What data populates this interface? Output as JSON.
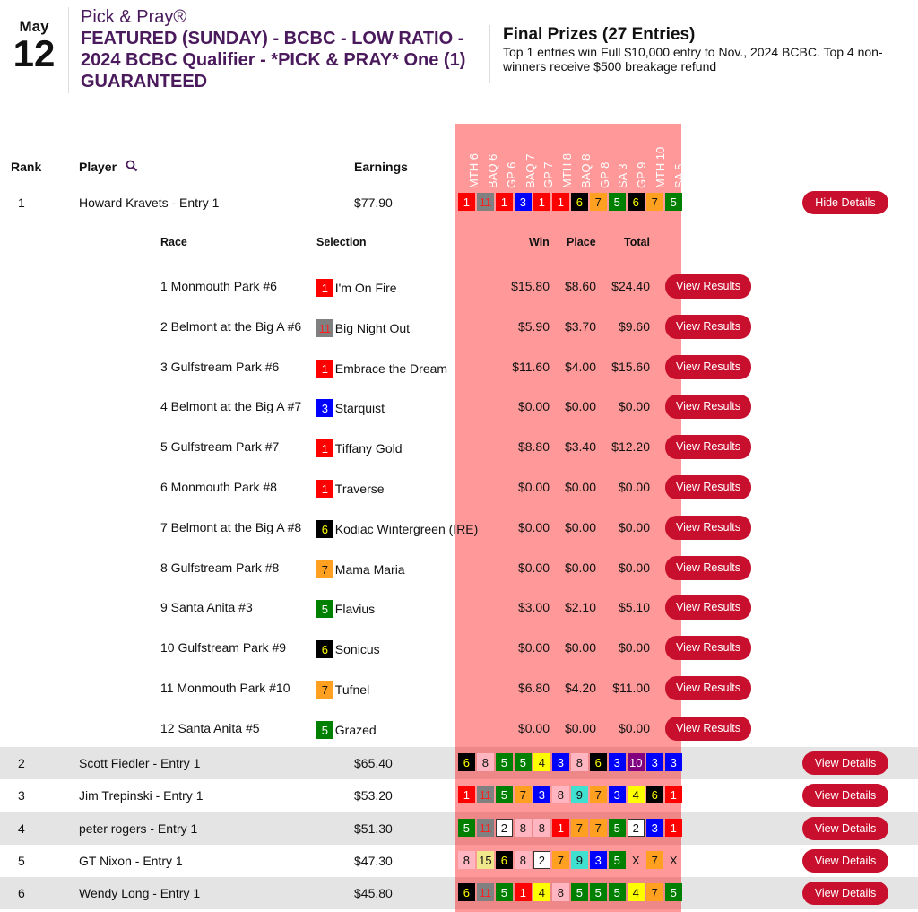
{
  "header": {
    "month": "May",
    "day": "12",
    "brand": "Pick & Pray®",
    "title": "FEATURED (SUNDAY) - BCBC - LOW RATIO - 2024 BCBC Qualifier - *PICK & PRAY* One (1) GUARANTEED",
    "prizes_title": "Final Prizes (27 Entries)",
    "prizes_desc": "Top 1 entries win Full $10,000 entry to Nov., 2024 BCBC. Top 4 non-winners receive $500 breakage refund"
  },
  "columns": {
    "rank": "Rank",
    "player": "Player",
    "earnings": "Earnings",
    "search_icon": "magnifier"
  },
  "races": [
    "MTH 6",
    "BAQ 6",
    "GP 6",
    "BAQ 7",
    "GP 7",
    "MTH 8",
    "BAQ 8",
    "GP 8",
    "SA 3",
    "GP 9",
    "MTH 10",
    "SA 5"
  ],
  "saddle_colors": {
    "1": [
      "#ff0000",
      "#ffffff"
    ],
    "2": [
      "#ffffff",
      "#111111"
    ],
    "3": [
      "#0000ff",
      "#ffffff"
    ],
    "4": [
      "#ffff00",
      "#111111"
    ],
    "5": [
      "#008000",
      "#ffffff"
    ],
    "6": [
      "#000000",
      "#ffff00"
    ],
    "7": [
      "#ffa020",
      "#111111"
    ],
    "8": [
      "#ffb6c1",
      "#111111"
    ],
    "9": [
      "#40e0d0",
      "#111111"
    ],
    "10": [
      "#800080",
      "#ffffff"
    ],
    "11": [
      "#808080",
      "#ff2020"
    ],
    "15": [
      "#f0e68c",
      "#111111"
    ],
    "X": [
      "transparent",
      "#111111"
    ]
  },
  "accent": "#c8102e",
  "entries": [
    {
      "rank": "1",
      "player": "Howard Kravets - Entry 1",
      "earnings": "$77.90",
      "picks": [
        "1",
        "11",
        "1",
        "3",
        "1",
        "1",
        "6",
        "7",
        "5",
        "6",
        "7",
        "5"
      ],
      "button": "Hide Details"
    },
    {
      "rank": "2",
      "player": "Scott Fiedler - Entry 1",
      "earnings": "$65.40",
      "picks": [
        "6",
        "8",
        "5",
        "5",
        "4",
        "3",
        "8",
        "6",
        "3",
        "10",
        "3",
        "3"
      ],
      "button": "View Details"
    },
    {
      "rank": "3",
      "player": "Jim Trepinski - Entry 1",
      "earnings": "$53.20",
      "picks": [
        "1",
        "11",
        "5",
        "7",
        "3",
        "8",
        "9",
        "7",
        "3",
        "4",
        "6",
        "1"
      ],
      "button": "View Details"
    },
    {
      "rank": "4",
      "player": "peter rogers - Entry 1",
      "earnings": "$51.30",
      "picks": [
        "5",
        "11",
        "2",
        "8",
        "8",
        "1",
        "7",
        "7",
        "5",
        "2",
        "3",
        "1"
      ],
      "button": "View Details"
    },
    {
      "rank": "5",
      "player": "GT Nixon - Entry 1",
      "earnings": "$47.30",
      "picks": [
        "8",
        "15",
        "6",
        "8",
        "2",
        "7",
        "9",
        "3",
        "5",
        "X",
        "7",
        "X"
      ],
      "button": "View Details"
    },
    {
      "rank": "6",
      "player": "Wendy Long - Entry 1",
      "earnings": "$45.80",
      "picks": [
        "6",
        "11",
        "5",
        "1",
        "4",
        "8",
        "5",
        "5",
        "5",
        "4",
        "7",
        "5"
      ],
      "button": "View Details"
    }
  ],
  "details": {
    "headers": {
      "race": "Race",
      "selection": "Selection",
      "win": "Win",
      "place": "Place",
      "total": "Total"
    },
    "button": "View Results",
    "rows": [
      {
        "race": "1 Monmouth Park #6",
        "num": "1",
        "horse": "I'm On Fire",
        "win": "$15.80",
        "place": "$8.60",
        "total": "$24.40"
      },
      {
        "race": "2 Belmont at the Big A #6",
        "num": "11",
        "horse": "Big Night Out",
        "win": "$5.90",
        "place": "$3.70",
        "total": "$9.60"
      },
      {
        "race": "3 Gulfstream Park #6",
        "num": "1",
        "horse": "Embrace the Dream",
        "win": "$11.60",
        "place": "$4.00",
        "total": "$15.60"
      },
      {
        "race": "4 Belmont at the Big A #7",
        "num": "3",
        "horse": "Starquist",
        "win": "$0.00",
        "place": "$0.00",
        "total": "$0.00"
      },
      {
        "race": "5 Gulfstream Park #7",
        "num": "1",
        "horse": "Tiffany Gold",
        "win": "$8.80",
        "place": "$3.40",
        "total": "$12.20"
      },
      {
        "race": "6 Monmouth Park #8",
        "num": "1",
        "horse": "Traverse",
        "win": "$0.00",
        "place": "$0.00",
        "total": "$0.00"
      },
      {
        "race": "7 Belmont at the Big A #8",
        "num": "6",
        "horse": "Kodiac Wintergreen (IRE)",
        "win": "$0.00",
        "place": "$0.00",
        "total": "$0.00"
      },
      {
        "race": "8 Gulfstream Park #8",
        "num": "7",
        "horse": "Mama Maria",
        "win": "$0.00",
        "place": "$0.00",
        "total": "$0.00"
      },
      {
        "race": "9 Santa Anita #3",
        "num": "5",
        "horse": "Flavius",
        "win": "$3.00",
        "place": "$2.10",
        "total": "$5.10"
      },
      {
        "race": "10 Gulfstream Park #9",
        "num": "6",
        "horse": "Sonicus",
        "win": "$0.00",
        "place": "$0.00",
        "total": "$0.00"
      },
      {
        "race": "11 Monmouth Park #10",
        "num": "7",
        "horse": "Tufnel",
        "win": "$6.80",
        "place": "$4.20",
        "total": "$11.00"
      },
      {
        "race": "12 Santa Anita #5",
        "num": "5",
        "horse": "Grazed",
        "win": "$0.00",
        "place": "$0.00",
        "total": "$0.00"
      }
    ]
  }
}
